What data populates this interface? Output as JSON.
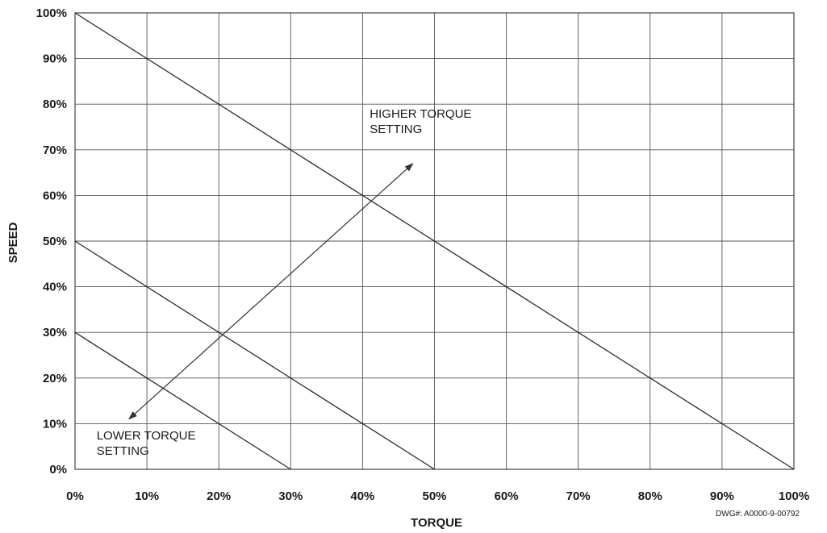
{
  "chart_data": {
    "type": "line",
    "title": "",
    "xlabel": "TORQUE",
    "ylabel": "SPEED",
    "xlim": [
      0,
      100
    ],
    "ylim": [
      0,
      100
    ],
    "grid": true,
    "x_ticks": [
      0,
      10,
      20,
      30,
      40,
      50,
      60,
      70,
      80,
      90,
      100
    ],
    "y_ticks": [
      0,
      10,
      20,
      30,
      40,
      50,
      60,
      70,
      80,
      90,
      100
    ],
    "x_tick_labels": [
      "0%",
      "10%",
      "20%",
      "30%",
      "40%",
      "50%",
      "60%",
      "70%",
      "80%",
      "90%",
      "100%"
    ],
    "y_tick_labels": [
      "0%",
      "10%",
      "20%",
      "30%",
      "40%",
      "50%",
      "60%",
      "70%",
      "80%",
      "90%",
      "100%"
    ],
    "series": [
      {
        "x": [
          0,
          30
        ],
        "y": [
          30,
          0
        ]
      },
      {
        "x": [
          0,
          50
        ],
        "y": [
          50,
          0
        ]
      },
      {
        "x": [
          0,
          100
        ],
        "y": [
          100,
          0
        ]
      }
    ],
    "annotations": [
      {
        "lines": [
          "HIGHER TORQUE",
          "SETTING"
        ],
        "x": 41,
        "y": 77
      },
      {
        "lines": [
          "LOWER TORQUE",
          "SETTING"
        ],
        "x": 3,
        "y": 6.5
      }
    ],
    "arrow": {
      "from": [
        7.5,
        11
      ],
      "to": [
        47,
        67
      ]
    },
    "drawing_number": "DWG#: A0000-9-00792"
  }
}
